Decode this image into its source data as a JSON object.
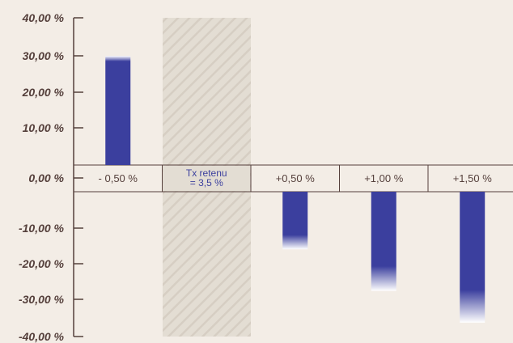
{
  "chart_data": {
    "type": "bar",
    "title": "",
    "xlabel": "",
    "ylabel": "",
    "ylim": [
      -40,
      40
    ],
    "yticks": [
      "40,00 %",
      "30,00 %",
      "20,00 %",
      "10,00 %",
      "0,00 %",
      "-10,00 %",
      "-20,00 %",
      "-30,00 %",
      "-40,00 %"
    ],
    "ytick_values": [
      40,
      30,
      20,
      10,
      0,
      -10,
      -20,
      -30,
      -40
    ],
    "categories": [
      "- 0,50 %",
      "Tx retenu",
      "+0,50 %",
      "+1,00 %",
      "+1,50 %"
    ],
    "highlight_category": {
      "index": 1,
      "lines": [
        "Tx retenu",
        "= 3,5 %"
      ]
    },
    "values": [
      30.5,
      null,
      -18,
      -28.5,
      -36.5
    ],
    "colors": {
      "bar": "#3b3f9e",
      "highlight": "#e3ddd3",
      "hatch": "#d6cec3",
      "axis": "#55403c",
      "background": "#f3ede6"
    }
  }
}
